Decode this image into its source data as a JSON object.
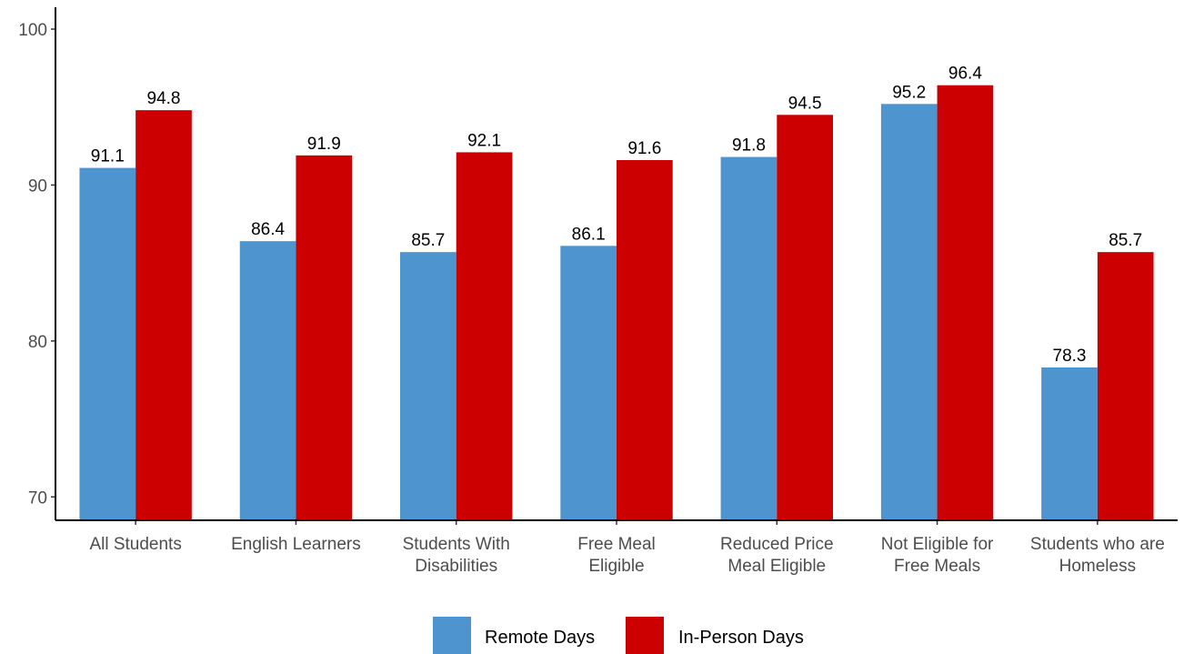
{
  "chart_data": {
    "type": "bar",
    "categories": [
      [
        "All Students"
      ],
      [
        "English Learners"
      ],
      [
        "Students With",
        "Disabilities"
      ],
      [
        "Free Meal",
        "Eligible"
      ],
      [
        "Reduced Price",
        "Meal Eligible"
      ],
      [
        "Not Eligible for",
        "Free Meals"
      ],
      [
        "Students who are",
        "Homeless"
      ]
    ],
    "series": [
      {
        "name": "Remote Days",
        "color": "#4e94cf",
        "values": [
          91.1,
          86.4,
          85.7,
          86.1,
          91.8,
          95.2,
          78.3
        ]
      },
      {
        "name": "In-Person Days",
        "color": "#cc0000",
        "values": [
          94.8,
          91.9,
          92.1,
          91.6,
          94.5,
          96.4,
          85.7
        ]
      }
    ],
    "ylim": [
      68.5,
      101.4
    ],
    "yticks": [
      70,
      80,
      90,
      100
    ],
    "grid": false,
    "legend_position": "bottom",
    "data_labels": true
  }
}
